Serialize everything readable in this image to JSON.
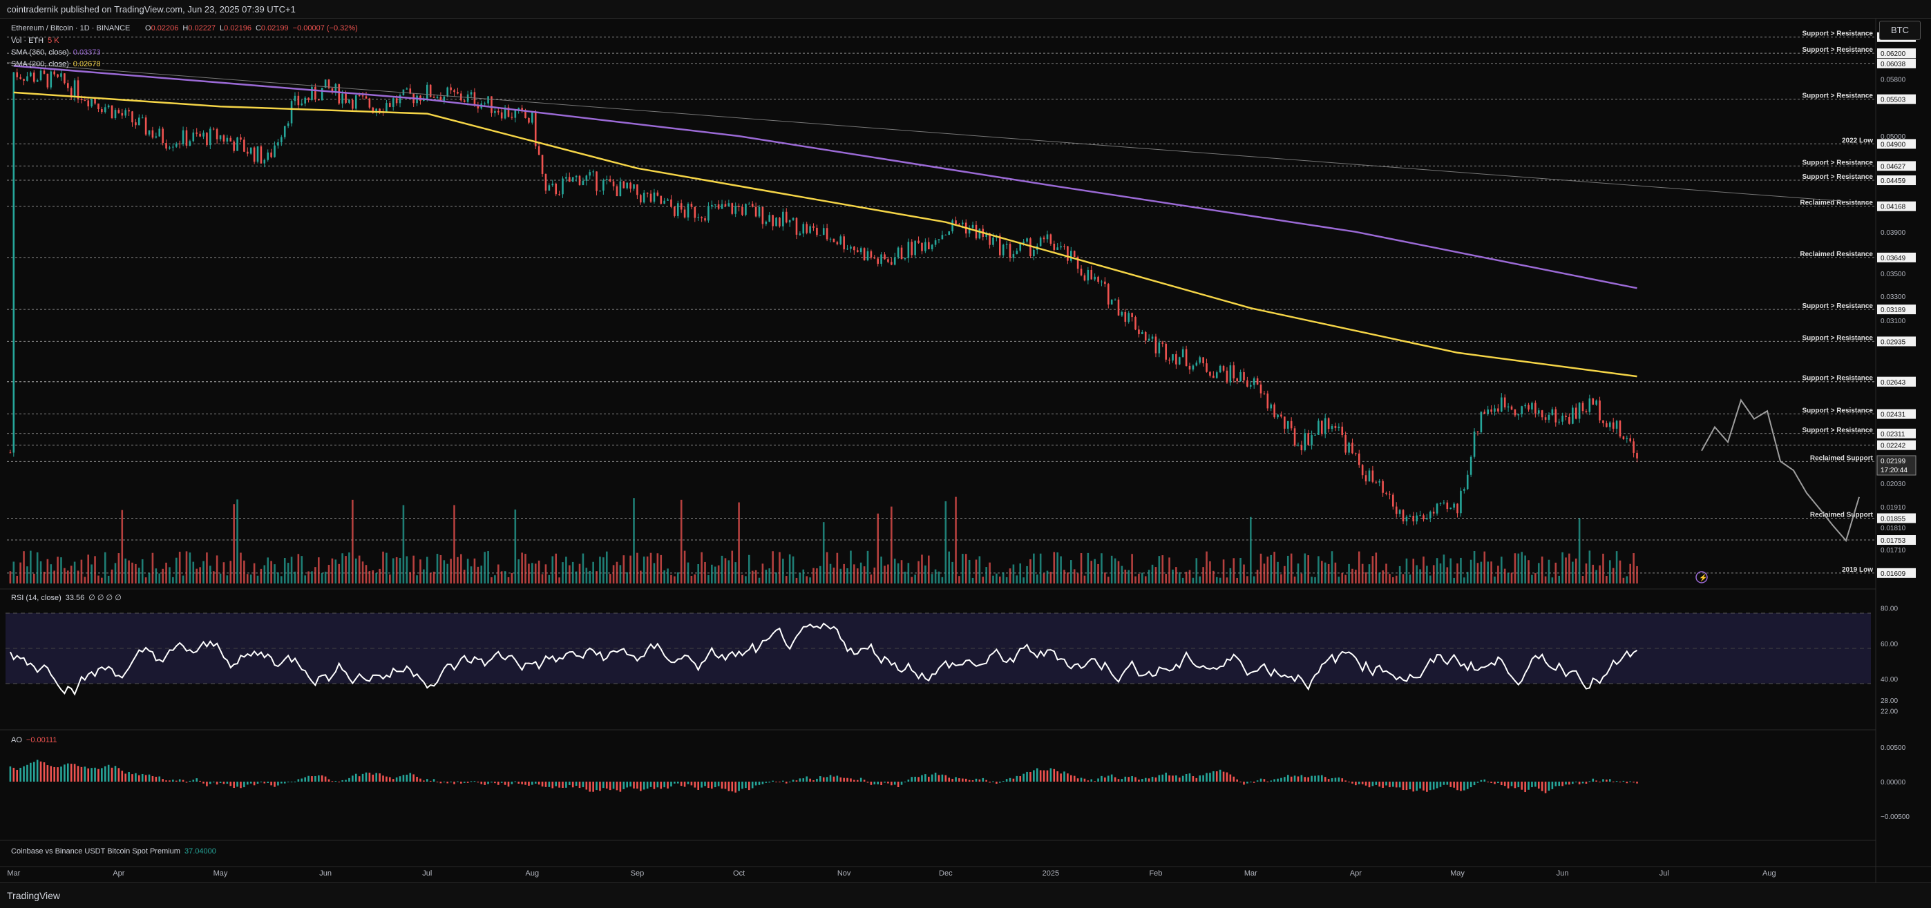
{
  "header": {
    "published": "cointradernik published on TradingView.com, Jun 23, 2025 07:39 UTC+1"
  },
  "currency_badge": "BTC",
  "footer": {
    "brand": "TradingView"
  },
  "legend": {
    "symbol": "Ethereum / Bitcoin · 1D · BINANCE",
    "ohlc": [
      {
        "k": "O",
        "v": "0.02206"
      },
      {
        "k": "H",
        "v": "0.02227"
      },
      {
        "k": "L",
        "v": "0.02196"
      },
      {
        "k": "C",
        "v": "0.02199"
      }
    ],
    "change": "−0.00007 (−0.32%)",
    "vol_label": "Vol · ETH",
    "vol_value": "5 K",
    "sma360_label": "SMA (360, close)",
    "sma360_value": "0.03373",
    "sma200_label": "SMA (200, close)",
    "sma200_value": "0.02678",
    "rsi_label": "RSI (14, close)",
    "rsi_value": "33.56",
    "rsi_extra": "∅ ∅ ∅ ∅",
    "ao_label": "AO",
    "ao_value": "−0.00111",
    "premium_label": "Coinbase vs Binance USDT Bitcoin Spot Premium",
    "premium_value": "37.04000"
  },
  "colors": {
    "bg": "#0b0b0b",
    "up": "#26a69a",
    "down": "#ef5350",
    "sma360": "#9b6ad6",
    "sma200": "#f5d547",
    "level": "#8a8a8a",
    "rsi": "#ffffff",
    "rsi_band": "#1a1830",
    "projection": "#9e9e9e"
  },
  "chart_data": [
    {
      "type": "candlestick",
      "title": "Ethereum / Bitcoin · 1D · BINANCE",
      "y_scale": "log",
      "ylim": [
        0.0158,
        0.0665
      ],
      "x_ticks": [
        "Mar",
        "Apr",
        "May",
        "Jun",
        "Jul",
        "Aug",
        "Sep",
        "Oct",
        "Nov",
        "Dec",
        "2025",
        "Feb",
        "Mar",
        "Apr",
        "May",
        "Jun",
        "Jul",
        "Aug"
      ],
      "y_ticks": [
        "0.05800",
        "0.05000",
        "0.03900",
        "0.03500",
        "0.03300",
        "0.03100",
        "0.02030",
        "0.01910",
        "0.01810",
        "0.01710"
      ],
      "close_path": [
        [
          "2024-03-01",
          0.059
        ],
        [
          "2024-03-15",
          0.0575
        ],
        [
          "2024-04-01",
          0.053
        ],
        [
          "2024-04-15",
          0.0495
        ],
        [
          "2024-05-01",
          0.05
        ],
        [
          "2024-05-15",
          0.047
        ],
        [
          "2024-05-22",
          0.054
        ],
        [
          "2024-06-01",
          0.0565
        ],
        [
          "2024-06-15",
          0.054
        ],
        [
          "2024-07-01",
          0.056
        ],
        [
          "2024-07-15",
          0.055
        ],
        [
          "2024-08-01",
          0.052
        ],
        [
          "2024-08-05",
          0.043
        ],
        [
          "2024-08-15",
          0.045
        ],
        [
          "2024-09-01",
          0.043
        ],
        [
          "2024-09-15",
          0.041
        ],
        [
          "2024-10-01",
          0.0415
        ],
        [
          "2024-10-15",
          0.04
        ],
        [
          "2024-11-01",
          0.038
        ],
        [
          "2024-11-12",
          0.036
        ],
        [
          "2024-11-25",
          0.038
        ],
        [
          "2024-12-05",
          0.04
        ],
        [
          "2024-12-20",
          0.037
        ],
        [
          "2025-01-01",
          0.038
        ],
        [
          "2025-01-15",
          0.034
        ],
        [
          "2025-02-01",
          0.029
        ],
        [
          "2025-02-15",
          0.0275
        ],
        [
          "2025-03-01",
          0.0265
        ],
        [
          "2025-03-15",
          0.0225
        ],
        [
          "2025-03-25",
          0.024
        ],
        [
          "2025-04-01",
          0.0215
        ],
        [
          "2025-04-15",
          0.0185
        ],
        [
          "2025-05-01",
          0.019
        ],
        [
          "2025-05-08",
          0.0245
        ],
        [
          "2025-05-15",
          0.025
        ],
        [
          "2025-06-01",
          0.024
        ],
        [
          "2025-06-10",
          0.025
        ],
        [
          "2025-06-23",
          0.022
        ]
      ],
      "sma_360": [
        [
          "2024-03-01",
          0.06
        ],
        [
          "2024-07-01",
          0.055
        ],
        [
          "2024-10-01",
          0.05
        ],
        [
          "2025-01-01",
          0.044
        ],
        [
          "2025-04-01",
          0.039
        ],
        [
          "2025-06-23",
          0.0337
        ]
      ],
      "sma_200": [
        [
          "2024-03-01",
          0.056
        ],
        [
          "2024-05-01",
          0.054
        ],
        [
          "2024-07-01",
          0.053
        ],
        [
          "2024-09-01",
          0.046
        ],
        [
          "2024-12-01",
          0.04
        ],
        [
          "2025-03-01",
          0.032
        ],
        [
          "2025-05-01",
          0.0285
        ],
        [
          "2025-06-23",
          0.0268
        ]
      ],
      "levels": [
        {
          "price": "0.06465",
          "label": "Support > Resistance"
        },
        {
          "price": "0.06200",
          "label": "Support > Resistance"
        },
        {
          "price": "0.06038",
          "label": ""
        },
        {
          "price": "0.05503",
          "label": "Support > Resistance"
        },
        {
          "price": "0.04900",
          "label": "2022 Low"
        },
        {
          "price": "0.04627",
          "label": "Support > Resistance"
        },
        {
          "price": "0.04459",
          "label": "Support > Resistance"
        },
        {
          "price": "0.04168",
          "label": "Reclaimed Resistance"
        },
        {
          "price": "0.03649",
          "label": "Reclaimed Resistance"
        },
        {
          "price": "0.03189",
          "label": "Support > Resistance"
        },
        {
          "price": "0.02935",
          "label": "Support > Resistance"
        },
        {
          "price": "0.02644",
          "label": "Support > Resistance"
        },
        {
          "price": "0.02643",
          "label": ""
        },
        {
          "price": "0.02431",
          "label": "Support > Resistance"
        },
        {
          "price": "0.02311",
          "label": "Support > Resistance"
        },
        {
          "price": "0.02242",
          "label": ""
        },
        {
          "price": "0.02149",
          "label": "Reclaimed Support"
        },
        {
          "price": "0.01855",
          "label": "Reclaimed Support"
        },
        {
          "price": "0.01753",
          "label": ""
        },
        {
          "price": "0.01609",
          "label": "2019 Low"
        }
      ],
      "last_price": "0.02199",
      "countdown": "17:20:44"
    },
    {
      "type": "line",
      "title": "RSI (14, close)",
      "ylim": [
        16,
        84
      ],
      "y_ticks": [
        "80.00",
        "60.00",
        "40.00",
        "28.00",
        "22.00"
      ],
      "bands": [
        30,
        70
      ],
      "last": 33.56
    },
    {
      "type": "bar",
      "title": "AO",
      "ylim": [
        -0.008,
        0.007
      ],
      "y_ticks": [
        "0.00500",
        "0.00000",
        "−0.00500"
      ],
      "last": -0.00111
    }
  ]
}
